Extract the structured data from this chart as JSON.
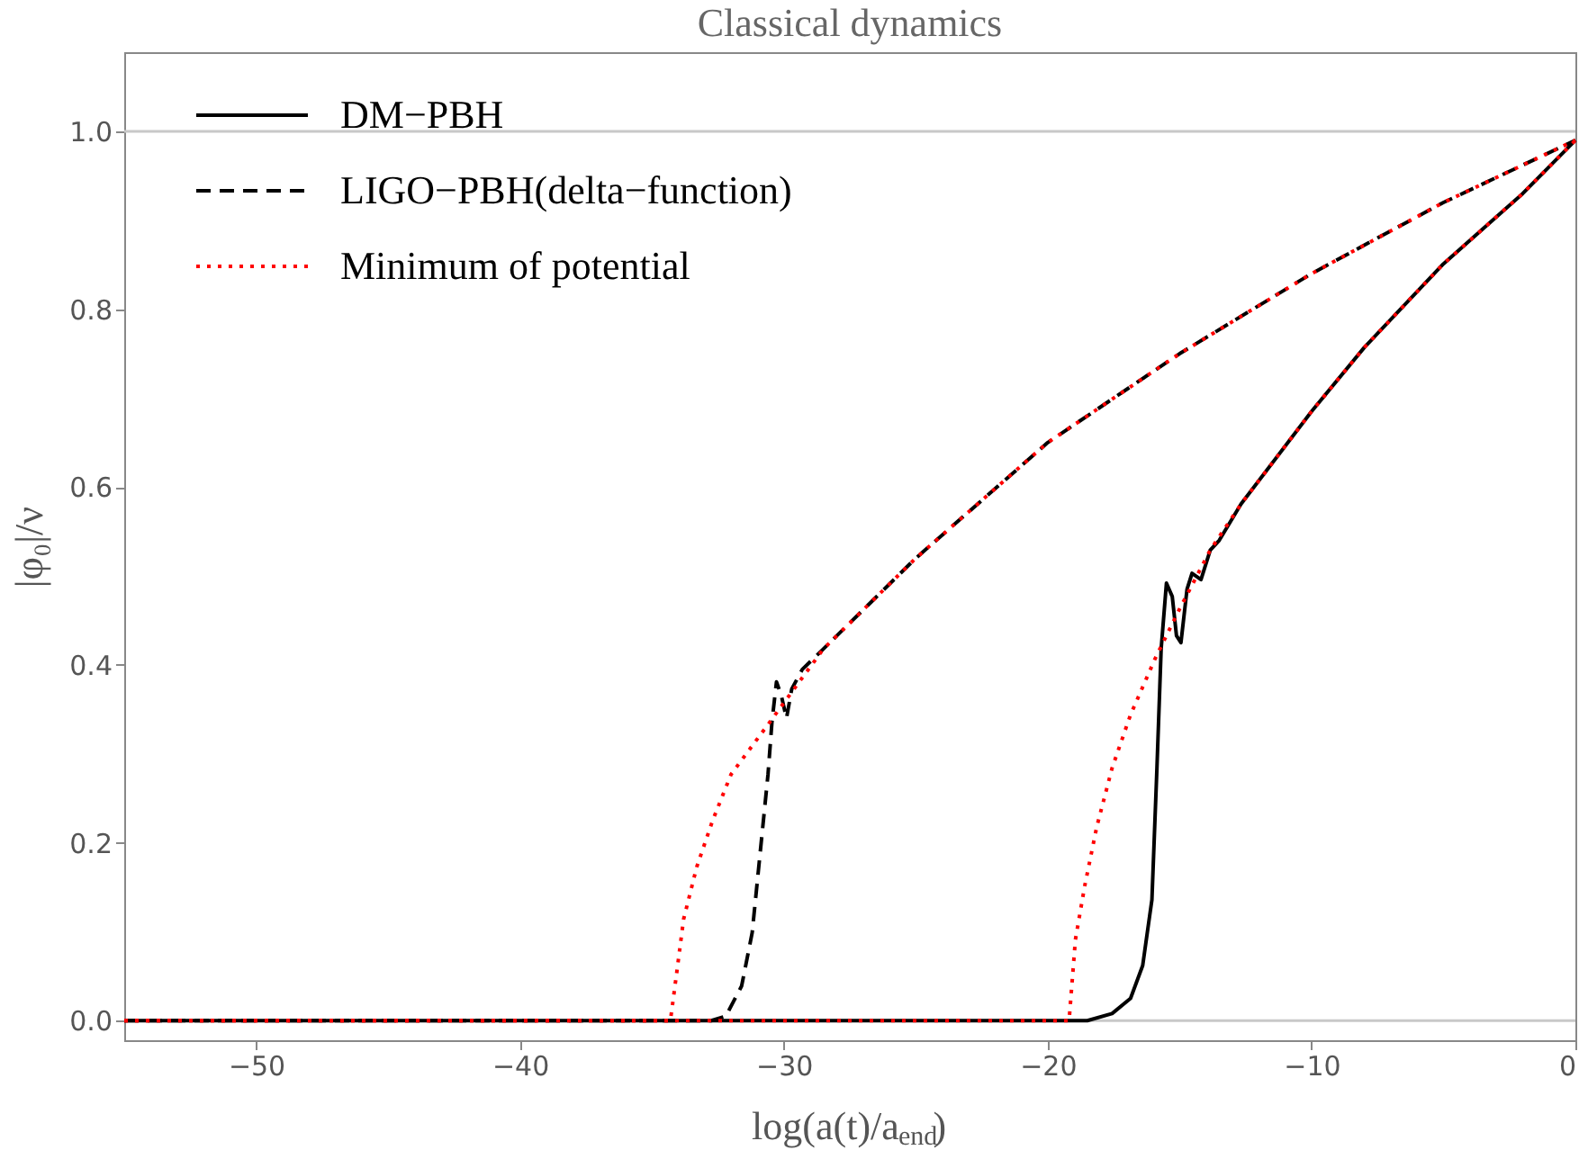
{
  "chart_data": {
    "type": "line",
    "title": "Classical dynamics",
    "xlabel": "log(a(t)/a$_{end}$)",
    "ylabel": "|φ₀|/ν",
    "xlim": [
      -55,
      0
    ],
    "ylim": [
      -0.022,
      1.089
    ],
    "xticks": [
      {
        "value": -50,
        "label": "−50"
      },
      {
        "value": -40,
        "label": "−40"
      },
      {
        "value": -30,
        "label": "−30"
      },
      {
        "value": -20,
        "label": "−20"
      },
      {
        "value": -10,
        "label": "−10"
      },
      0
    ],
    "yticks": [
      {
        "value": 0,
        "label": "0.0"
      },
      0.2,
      0.4,
      0.6,
      0.8,
      {
        "value": 1,
        "label": "1.0"
      }
    ],
    "grid": false,
    "legend": "top left",
    "marker": "none",
    "ref_lines": [
      {
        "axis": "y",
        "value": 0,
        "color": "#c8c8c8"
      },
      {
        "axis": "y",
        "value": 1,
        "color": "#c8c8c8"
      }
    ],
    "series": [
      {
        "name": "DM−PBH",
        "color": "#000000",
        "line_style": "solid",
        "x": [
          -55,
          -18.5,
          -17.56,
          -16.86,
          -16.4,
          -16.05,
          -15.86,
          -15.7,
          -15.5,
          -15.28,
          -15.12,
          -14.95,
          -14.72,
          -14.53,
          -14.19,
          -13.84,
          -13.5,
          -12.67,
          -10,
          -8,
          -5,
          -2,
          0
        ],
        "values": [
          0,
          0,
          0.008,
          0.025,
          0.062,
          0.136,
          0.284,
          0.418,
          0.492,
          0.477,
          0.433,
          0.425,
          0.485,
          0.503,
          0.496,
          0.529,
          0.54,
          0.581,
          0.685,
          0.757,
          0.851,
          0.93,
          0.99
        ]
      },
      {
        "name": "LIGO−PBH(delta−function)",
        "color": "#000000",
        "line_style": "dashed",
        "x": [
          -55,
          -32.75,
          -32.2,
          -31.6,
          -31.2,
          -30.9,
          -30.6,
          -30.45,
          -30.28,
          -30.1,
          -29.9,
          -29.7,
          -29.3,
          -28.5,
          -25,
          -20,
          -15,
          -10,
          -5,
          0
        ],
        "values": [
          0,
          0,
          0.005,
          0.039,
          0.099,
          0.188,
          0.277,
          0.336,
          0.381,
          0.366,
          0.34,
          0.373,
          0.395,
          0.418,
          0.52,
          0.65,
          0.75,
          0.84,
          0.92,
          0.99
        ]
      },
      {
        "name": "Minimum of potential",
        "color": "#ff0000",
        "line_style": "dotted",
        "x": [
          -55,
          -34.3,
          -34.06,
          -33.8,
          -33.3,
          -32.7,
          -32.0,
          -30.6,
          -28.5,
          -25,
          -20,
          -15,
          -10,
          -5,
          0
        ],
        "values": [
          0,
          0,
          0.054,
          0.114,
          0.173,
          0.225,
          0.277,
          0.333,
          0.418,
          0.52,
          0.65,
          0.75,
          0.84,
          0.92,
          0.99
        ]
      },
      {
        "color": "#ff0000",
        "line_style": "dotted",
        "x": [
          -55,
          -19.19,
          -18.95,
          -18.6,
          -18.14,
          -17.56,
          -16.86,
          -15.93,
          -15.0,
          -13.84,
          -12.67,
          -10,
          -8,
          -5,
          -2,
          0
        ],
        "values": [
          0,
          0,
          0.091,
          0.151,
          0.218,
          0.284,
          0.344,
          0.407,
          0.463,
          0.529,
          0.581,
          0.685,
          0.757,
          0.851,
          0.93,
          0.99
        ]
      }
    ]
  }
}
